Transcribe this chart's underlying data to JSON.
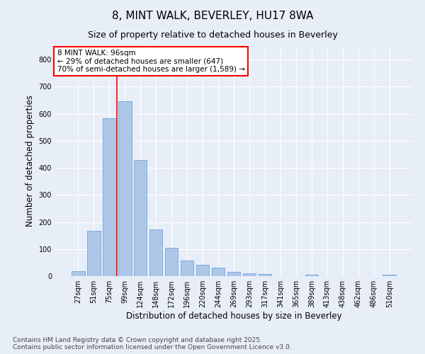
{
  "title1": "8, MINT WALK, BEVERLEY, HU17 8WA",
  "title2": "Size of property relative to detached houses in Beverley",
  "xlabel": "Distribution of detached houses by size in Beverley",
  "ylabel": "Number of detached properties",
  "categories": [
    "27sqm",
    "51sqm",
    "75sqm",
    "99sqm",
    "124sqm",
    "148sqm",
    "172sqm",
    "196sqm",
    "220sqm",
    "244sqm",
    "269sqm",
    "293sqm",
    "317sqm",
    "341sqm",
    "365sqm",
    "389sqm",
    "413sqm",
    "438sqm",
    "462sqm",
    "486sqm",
    "510sqm"
  ],
  "values": [
    18,
    168,
    583,
    645,
    430,
    172,
    105,
    57,
    42,
    32,
    15,
    10,
    8,
    0,
    0,
    6,
    0,
    0,
    0,
    0,
    6
  ],
  "bar_color": "#aec6e8",
  "bar_edge_color": "#5b9bd5",
  "vline_color": "red",
  "vline_position": 3.0,
  "annotation_line1": "8 MINT WALK: 96sqm",
  "annotation_line2": "← 29% of detached houses are smaller (647)",
  "annotation_line3": "70% of semi-detached houses are larger (1,589) →",
  "annotation_box_facecolor": "white",
  "annotation_box_edgecolor": "red",
  "ylim": [
    0,
    850
  ],
  "yticks": [
    0,
    100,
    200,
    300,
    400,
    500,
    600,
    700,
    800
  ],
  "footnote_line1": "Contains HM Land Registry data © Crown copyright and database right 2025.",
  "footnote_line2": "Contains public sector information licensed under the Open Government Licence v3.0.",
  "background_color": "#e8eef8",
  "grid_color": "white",
  "title_fontsize": 11,
  "subtitle_fontsize": 9,
  "tick_fontsize": 7,
  "ylabel_fontsize": 8.5,
  "xlabel_fontsize": 8.5,
  "footnote_fontsize": 6.5,
  "annot_fontsize": 7.5
}
